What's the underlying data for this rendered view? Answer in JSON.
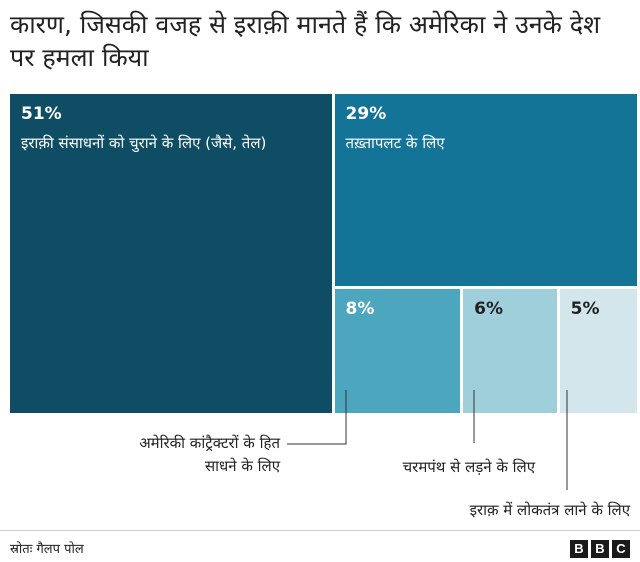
{
  "title": "कारण, जिसकी वजह से इराक़ी मानते हैं कि अमेरिका ने उनके देश पर हमला किया",
  "chart_data": {
    "type": "treemap",
    "items": [
      {
        "pct_label": "51%",
        "value": 51,
        "label": "इराक़ी संसाधनों को चुराने के लिए (जैसे, तेल)",
        "color": "#0e4d64"
      },
      {
        "pct_label": "29%",
        "value": 29,
        "label": "तख़्तापलट के लिए",
        "color": "#137497"
      },
      {
        "pct_label": "8%",
        "value": 8,
        "label": "अमेरिकी कांट्रैक्टरों के हित साधने के लिए",
        "color": "#4ba6be"
      },
      {
        "pct_label": "6%",
        "value": 6,
        "label": "चरमपंथ से लड़ने के लिए",
        "color": "#a0cfdc"
      },
      {
        "pct_label": "5%",
        "value": 5,
        "label": "इराक़ में लोकतंत्र लाने के लिए",
        "color": "#d2e6ec"
      }
    ]
  },
  "annotations": {
    "contractors_line1": "अमेरिकी कांट्रैक्टरों के हित",
    "contractors_line2": "साधने के लिए",
    "extremism": "चरमपंथ से लड़ने के लिए",
    "democracy": "इराक़ में लोकतंत्र लाने के लिए"
  },
  "footer": {
    "source": "स्रोतः गैलप पोल",
    "logo_letters": [
      "B",
      "B",
      "C"
    ]
  }
}
